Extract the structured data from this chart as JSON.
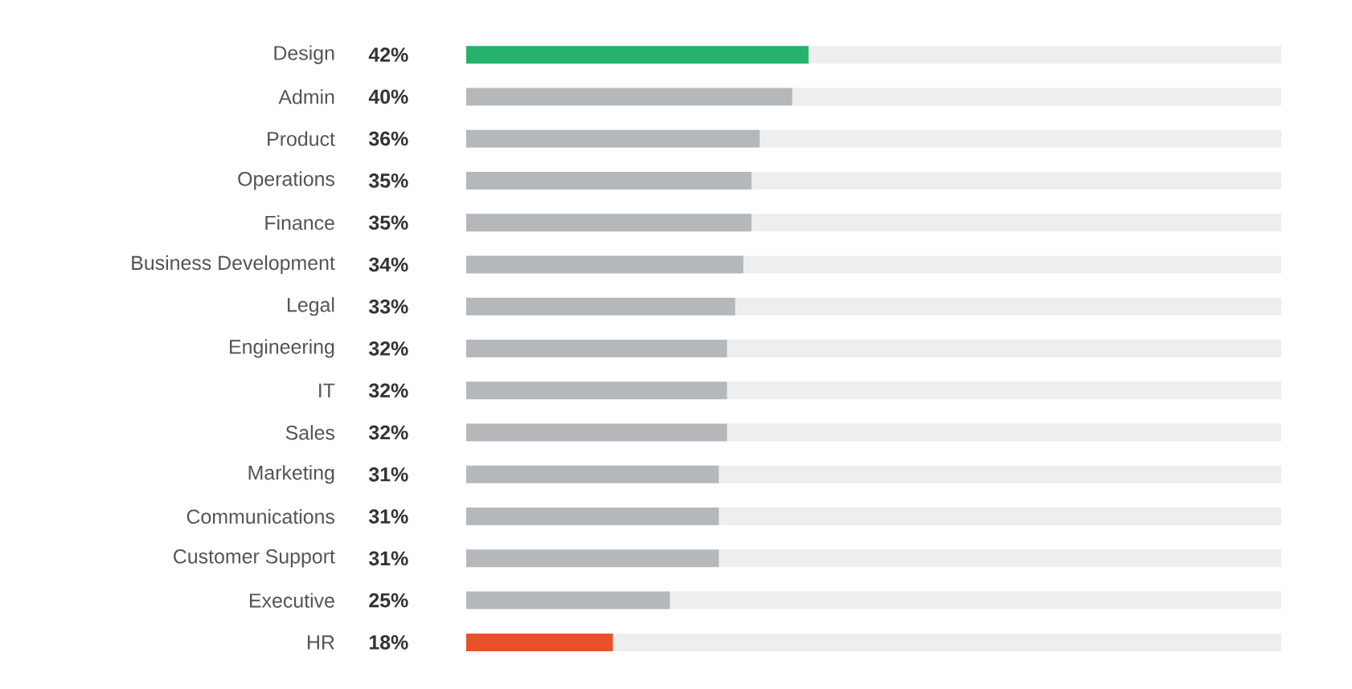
{
  "chart_data": {
    "type": "bar",
    "orientation": "horizontal",
    "stacked": true,
    "categories": [
      "Design",
      "Admin",
      "Product",
      "Operations",
      "Finance",
      "Business Development",
      "Legal",
      "Engineering",
      "IT",
      "Sales",
      "Marketing",
      "Communications",
      "Customer Support",
      "Executive",
      "HR"
    ],
    "series": [
      {
        "colors": [
          "#27b26c",
          "#b5b8bb",
          "#b5b8bb",
          "#b5b8bb",
          "#b5b8bb",
          "#b5b8bb",
          "#b5b8bb",
          "#b5b8bb",
          "#b5b8bb",
          "#b5b8bb",
          "#b5b8bb",
          "#b5b8bb",
          "#b5b8bb",
          "#b5b8bb",
          "#e8512b"
        ],
        "values": [
          42,
          40,
          36,
          35,
          35,
          34,
          33,
          32,
          32,
          32,
          31,
          31,
          31,
          25,
          18
        ],
        "value_labels": [
          "42%",
          "40%",
          "36%",
          "35%",
          "35%",
          "34%",
          "33%",
          "32%",
          "32%",
          "32%",
          "31%",
          "31%",
          "31%",
          "25%",
          "18%"
        ]
      },
      {
        "color": "#eceef0",
        "values": [
          58,
          60,
          64,
          65,
          65,
          66,
          67,
          68,
          68,
          68,
          69,
          69,
          69,
          75,
          82
        ]
      }
    ],
    "xlim": [
      0,
      100
    ],
    "tick_labels": "y",
    "grid": false
  }
}
